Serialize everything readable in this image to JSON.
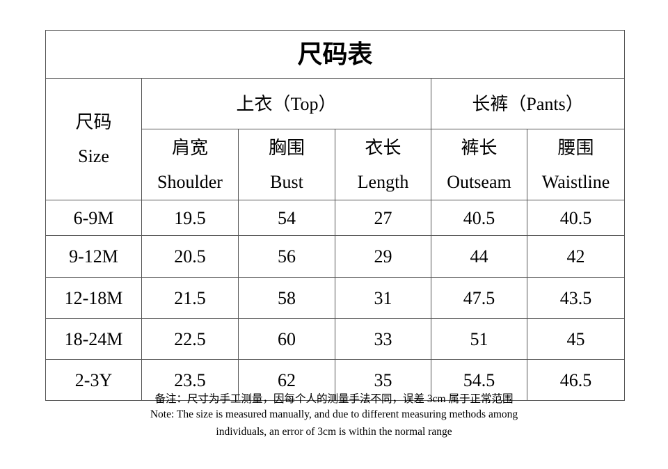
{
  "title": "尺码表",
  "header": {
    "size_cn": "尺码",
    "size_en": "Size",
    "top_group": "上衣（Top）",
    "pants_group": "长裤（Pants）",
    "columns": [
      {
        "cn": "肩宽",
        "en": "Shoulder"
      },
      {
        "cn": "胸围",
        "en": "Bust"
      },
      {
        "cn": "衣长",
        "en": "Length"
      },
      {
        "cn": "裤长",
        "en": "Outseam"
      },
      {
        "cn": "腰围",
        "en": "Waistline"
      }
    ]
  },
  "rows": [
    [
      "6-9M",
      "19.5",
      "54",
      "27",
      "40.5",
      "40.5"
    ],
    [
      "9-12M",
      "20.5",
      "56",
      "29",
      "44",
      "42"
    ],
    [
      "12-18M",
      "21.5",
      "58",
      "31",
      "47.5",
      "43.5"
    ],
    [
      "18-24M",
      "22.5",
      "60",
      "33",
      "51",
      "45"
    ],
    [
      "2-3Y",
      "23.5",
      "62",
      "35",
      "54.5",
      "46.5"
    ]
  ],
  "notes": {
    "cn": "备注：尺寸为手工测量，因每个人的测量手法不同，误差 3cm 属于正常范围",
    "en_line1": "Note: The size is measured manually, and due to different measuring methods among",
    "en_line2": "individuals, an error of 3cm is within the normal range"
  }
}
